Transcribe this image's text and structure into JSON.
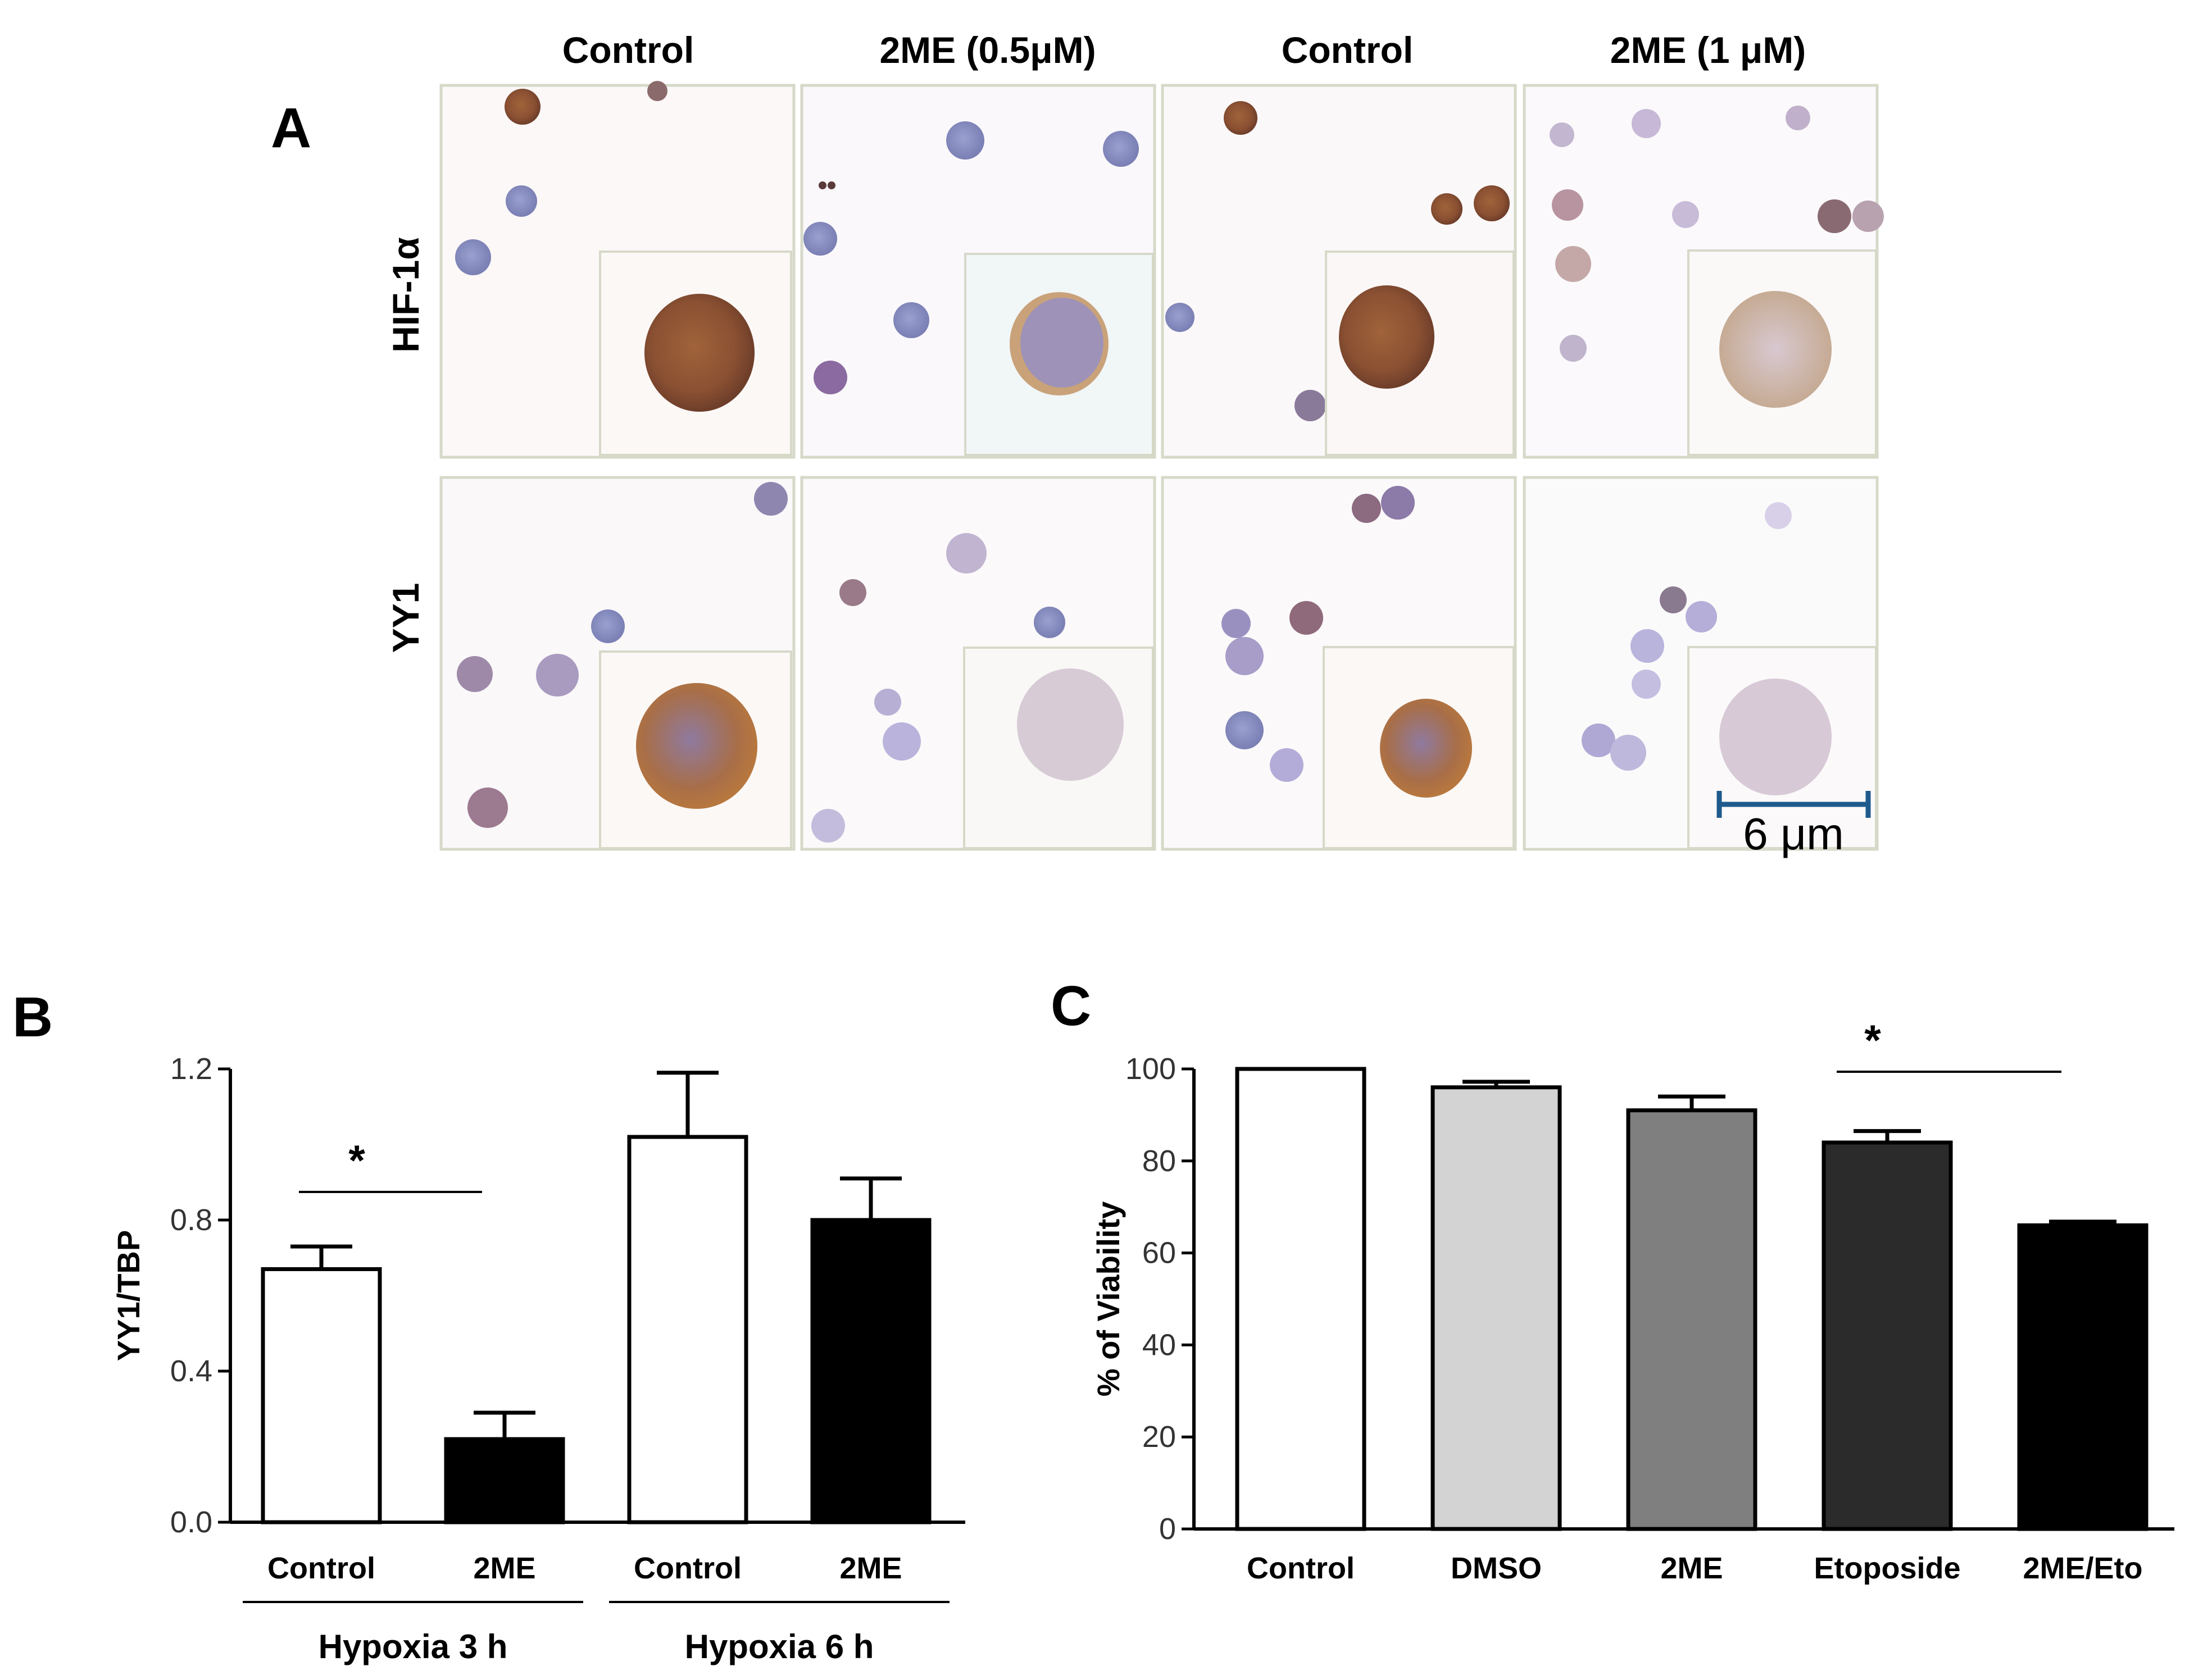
{
  "panels": {
    "a": "A",
    "b": "B",
    "c": "C"
  },
  "micrographs": {
    "column_headers": [
      "Control",
      "2ME (0.5μM)",
      "Control",
      "2ME (1 μM)"
    ],
    "row_headers": [
      "HIF-1α",
      "YY1"
    ],
    "scale_bar_label": "6 μm"
  },
  "chart_data": [
    {
      "type": "bar",
      "panel": "B",
      "title": "",
      "ylabel": "YY1/TBP",
      "xlabel": "",
      "ylim": [
        0,
        1.2
      ],
      "yticks": [
        "0.0",
        "0.4",
        "0.8",
        "1.2"
      ],
      "categories": [
        "Control",
        "2ME",
        "Control",
        "2ME"
      ],
      "groups": [
        {
          "label": "Hypoxia 3  h",
          "members": [
            0,
            1
          ]
        },
        {
          "label": "Hypoxia 6   h",
          "members": [
            2,
            3
          ]
        }
      ],
      "values": [
        0.67,
        0.22,
        1.02,
        0.8
      ],
      "errors": [
        0.06,
        0.07,
        0.17,
        0.11
      ],
      "colors": [
        "#ffffff",
        "#000000",
        "#ffffff",
        "#000000"
      ],
      "significance": [
        {
          "between": [
            0,
            1
          ],
          "label": "*"
        }
      ]
    },
    {
      "type": "bar",
      "panel": "C",
      "title": "",
      "ylabel": "% of Viability",
      "xlabel": "",
      "ylim": [
        0,
        100
      ],
      "yticks": [
        "0",
        "20",
        "40",
        "60",
        "80",
        "100"
      ],
      "categories": [
        "Control",
        "DMSO",
        "2ME",
        "Etoposide",
        "2ME/Eto"
      ],
      "values": [
        100,
        96,
        91,
        84,
        66
      ],
      "errors": [
        0,
        1.2,
        3,
        2.5,
        0.8
      ],
      "colors": [
        "#ffffff",
        "#d3d3d3",
        "#7f7f7f",
        "#2b2b2b",
        "#000000"
      ],
      "significance": [
        {
          "between": [
            3,
            4
          ],
          "label": "*"
        }
      ]
    }
  ]
}
